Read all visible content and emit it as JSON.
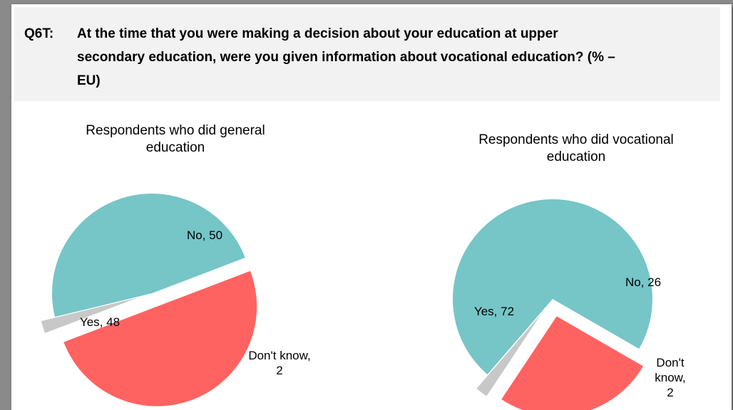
{
  "question": {
    "label": "Q6T:",
    "text": "At the time that you were making a decision about your education at upper secondary education, were you given information about vocational education? (% – EU)"
  },
  "chart_data": [
    {
      "type": "pie",
      "title": "Respondents who did general education",
      "slices": [
        {
          "label": "No",
          "value": 50,
          "color": "#ff6361"
        },
        {
          "label": "Don't know",
          "value": 2,
          "color": "#c8c8c8"
        },
        {
          "label": "Yes",
          "value": 48,
          "color": "#76c5c7"
        }
      ],
      "data_labels": [
        "No, 50",
        "Don't know, 2",
        "Yes, 48"
      ]
    },
    {
      "type": "pie",
      "title": "Respondents who did vocational education",
      "slices": [
        {
          "label": "No",
          "value": 26,
          "color": "#ff6361"
        },
        {
          "label": "Don't know",
          "value": 2,
          "color": "#c8c8c8"
        },
        {
          "label": "Yes",
          "value": 72,
          "color": "#76c5c7"
        }
      ],
      "data_labels": [
        "No, 26",
        "Don't know, 2",
        "Yes, 72"
      ]
    }
  ]
}
